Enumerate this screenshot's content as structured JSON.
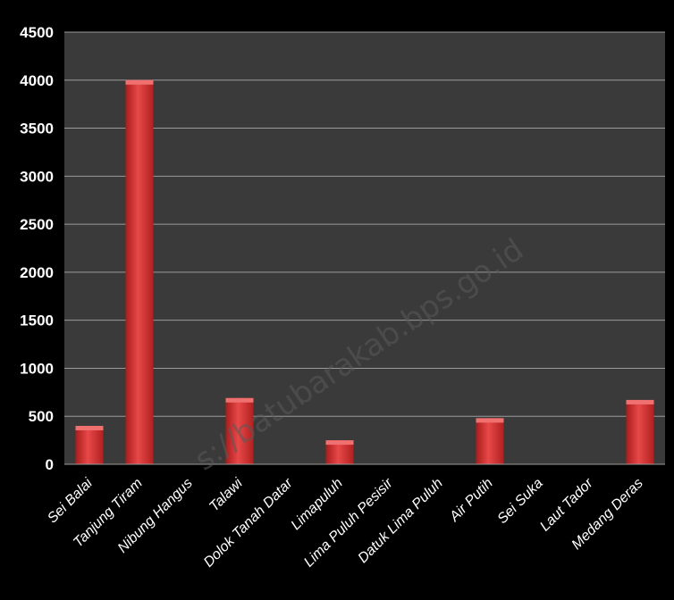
{
  "chart_data": {
    "type": "bar",
    "categories": [
      "Sei Balai",
      "Tanjung Tiram",
      "Nibung Hangus",
      "Talawi",
      "Dolok Tanah Datar",
      "Limapuluh",
      "Lima Puluh Pesisir",
      "Datuk Lima Puluh",
      "Air Putih",
      "Sei Suka",
      "Laut Tador",
      "Medang Deras"
    ],
    "values": [
      400,
      4000,
      0,
      690,
      0,
      250,
      0,
      0,
      480,
      0,
      0,
      670
    ],
    "ylim": [
      0,
      4500
    ],
    "yticks": [
      0,
      500,
      1000,
      1500,
      2000,
      2500,
      3000,
      3500,
      4000,
      4500
    ],
    "grid": true,
    "colors": {
      "plot_background": "#3a3a3a",
      "page_background": "#000000",
      "bar": "#d93030",
      "bar_highlight": "#f07070",
      "gridline": "#9a9a9a",
      "text": "#ffffff"
    }
  },
  "watermark": "s://batubarakab.bps.go.id"
}
